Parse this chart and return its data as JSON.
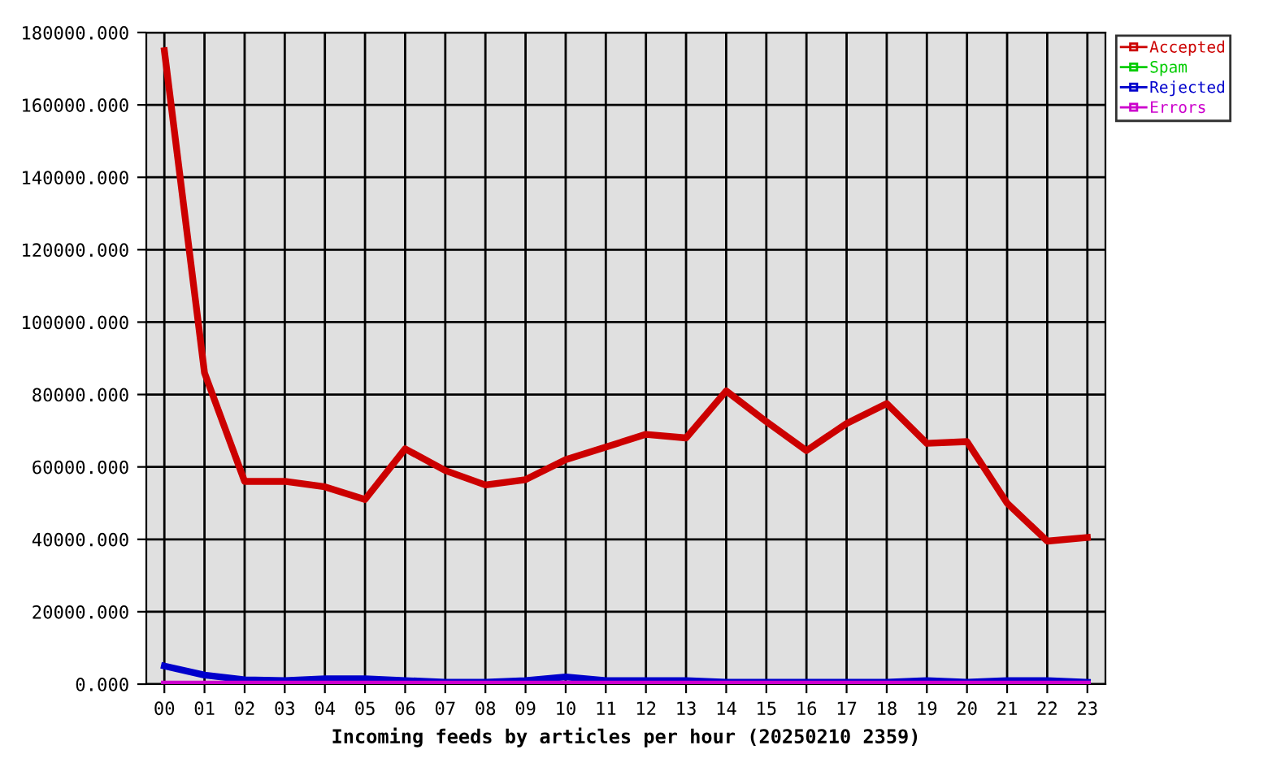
{
  "chart_data": {
    "type": "line",
    "xlabel": "Incoming feeds by articles per hour (20250210 2359)",
    "categories": [
      "00",
      "01",
      "02",
      "03",
      "04",
      "05",
      "06",
      "07",
      "08",
      "09",
      "10",
      "11",
      "12",
      "13",
      "14",
      "15",
      "16",
      "17",
      "18",
      "19",
      "20",
      "21",
      "22",
      "23"
    ],
    "series": [
      {
        "name": "Accepted",
        "color": "#cc0000",
        "values": [
          175000,
          86000,
          56000,
          56000,
          54500,
          51000,
          65000,
          59000,
          55000,
          56500,
          62000,
          65500,
          69000,
          68000,
          81000,
          72500,
          64500,
          72000,
          77500,
          66500,
          67000,
          50000,
          39500,
          40500
        ]
      },
      {
        "name": "Spam",
        "color": "#00cc00",
        "values": [
          null,
          null,
          null,
          null,
          null,
          null,
          null,
          null,
          null,
          null,
          null,
          null,
          null,
          null,
          null,
          null,
          null,
          null,
          null,
          null,
          null,
          null,
          null,
          null
        ]
      },
      {
        "name": "Rejected",
        "color": "#0000cc",
        "values": [
          5000,
          2500,
          1200,
          1000,
          1500,
          1500,
          1000,
          500,
          500,
          1000,
          2000,
          1000,
          1000,
          1000,
          500,
          500,
          500,
          500,
          500,
          1000,
          500,
          1000,
          1000,
          500
        ]
      },
      {
        "name": "Errors",
        "color": "#cc00cc",
        "values": [
          0,
          0,
          0,
          0,
          0,
          0,
          0,
          0,
          0,
          0,
          0,
          0,
          0,
          0,
          0,
          0,
          0,
          0,
          0,
          0,
          0,
          0,
          0,
          0
        ]
      }
    ],
    "ylim": [
      0,
      180000
    ],
    "yticks": [
      {
        "value": 0,
        "label": "0.000"
      },
      {
        "value": 20000,
        "label": "20000.000"
      },
      {
        "value": 40000,
        "label": "40000.000"
      },
      {
        "value": 60000,
        "label": "60000.000"
      },
      {
        "value": 80000,
        "label": "80000.000"
      },
      {
        "value": 100000,
        "label": "100000.000"
      },
      {
        "value": 120000,
        "label": "120000.000"
      },
      {
        "value": 140000,
        "label": "140000.000"
      },
      {
        "value": 160000,
        "label": "160000.000"
      },
      {
        "value": 180000,
        "label": "180000.000"
      }
    ],
    "grid": true,
    "legend": "right",
    "line_style": "solid"
  }
}
